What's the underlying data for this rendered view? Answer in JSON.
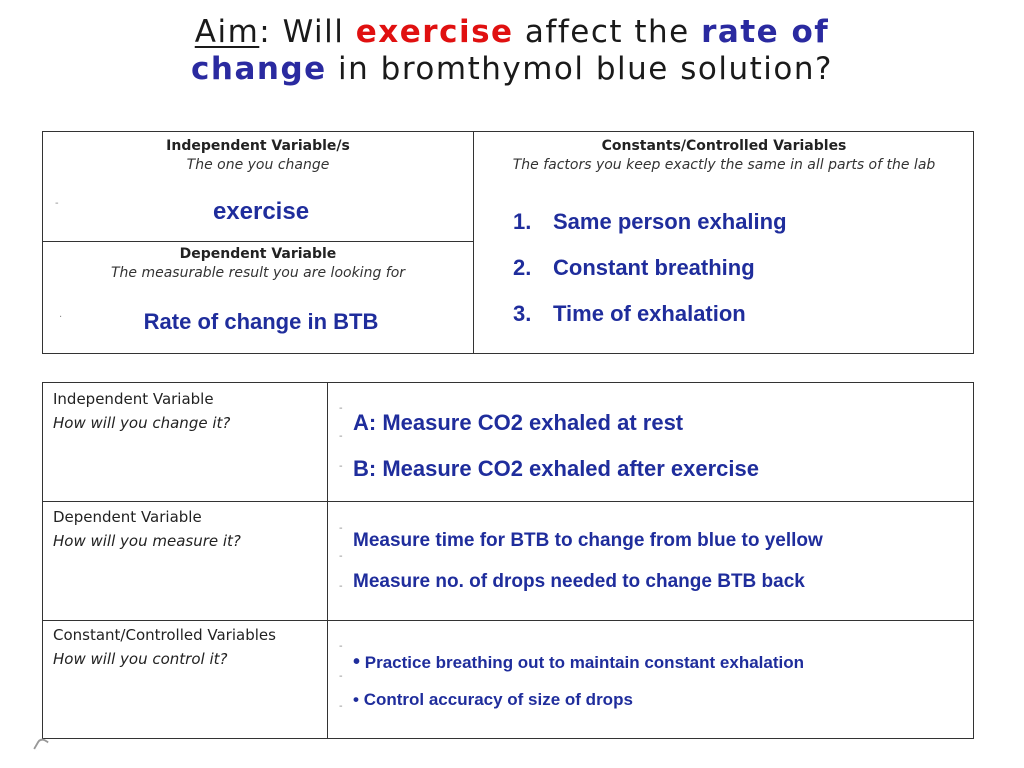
{
  "title": {
    "aim": "Aim",
    "colon": ":",
    "will": " Will ",
    "exercise": "exercise",
    "affect": " affect the ",
    "rate_of": "rate of",
    "change": "change",
    "rest": " in  bromthymol blue solution?"
  },
  "table1": {
    "independent": {
      "heading": "Independent Variable/s",
      "subheading": "The one you change",
      "value": "exercise"
    },
    "dependent": {
      "heading": "Dependent Variable",
      "subheading": "The measurable result you are looking for",
      "value": "Rate of change in BTB"
    },
    "constants": {
      "heading": "Constants/Controlled Variables",
      "subheading": "The factors you keep exactly the same in all parts of the lab",
      "items": [
        {
          "num": "1.",
          "text": "Same person exhaling"
        },
        {
          "num": "2.",
          "text": "Constant breathing"
        },
        {
          "num": "3.",
          "text": "Time of exhalation"
        }
      ]
    }
  },
  "table2": {
    "rows": [
      {
        "heading": "Independent Variable",
        "question": "How will you change it?",
        "lines": [
          "A: Measure CO2 exhaled at rest",
          "B: Measure CO2 exhaled after exercise"
        ]
      },
      {
        "heading": "Dependent Variable",
        "question": "How will you measure it?",
        "lines": [
          "Measure time for BTB to change from blue to yellow",
          "Measure no. of drops needed to change BTB back"
        ]
      },
      {
        "heading": "Constant/Controlled Variables",
        "question": "How will you control it?",
        "lines": [
          "Practice breathing out to maintain constant exhalation",
          "Control accuracy of size of drops"
        ]
      }
    ]
  },
  "colors": {
    "answer_blue": "#1f2d9c",
    "title_red": "#e01010",
    "title_blue": "#2a2aa0"
  }
}
